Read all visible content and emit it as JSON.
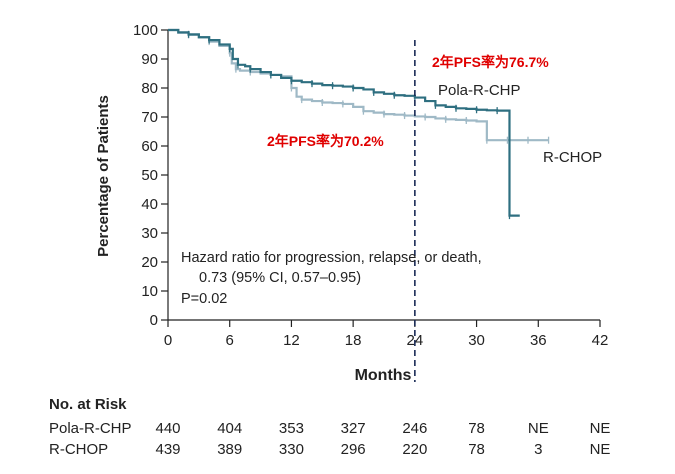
{
  "chart_data": {
    "type": "line",
    "title": "",
    "xlabel": "Months",
    "ylabel": "Percentage of Patients",
    "xlim": [
      0,
      42
    ],
    "ylim": [
      0,
      100
    ],
    "xticks": [
      0,
      6,
      12,
      18,
      24,
      30,
      36,
      42
    ],
    "yticks": [
      0,
      10,
      20,
      30,
      40,
      50,
      60,
      70,
      80,
      90,
      100
    ],
    "series": [
      {
        "name": "Pola-R-CHP",
        "color": "#2e6f80",
        "x": [
          0,
          1,
          2,
          3,
          4,
          5,
          6,
          6.3,
          6.8,
          7.5,
          8,
          9,
          10,
          11,
          12,
          13,
          14,
          15,
          16,
          17,
          18,
          19,
          20,
          21,
          22,
          23,
          24,
          25,
          26,
          27,
          28,
          29,
          30,
          31,
          32,
          33.2,
          33.2,
          34.2
        ],
        "y": [
          100,
          99.2,
          98.5,
          97.5,
          96.5,
          95,
          93.5,
          90,
          88,
          87.5,
          86.5,
          85.5,
          84.5,
          83.5,
          82.5,
          82,
          81.5,
          81,
          80.8,
          80.5,
          80,
          79.5,
          78.5,
          78,
          77.5,
          77.3,
          76.7,
          75.5,
          74,
          73.5,
          73,
          72.8,
          72.5,
          72.3,
          72.2,
          72,
          36,
          36
        ]
      },
      {
        "name": "R-CHOP",
        "color": "#9fb9c6",
        "x": [
          0,
          1,
          2,
          3,
          4,
          5,
          6,
          6.2,
          6.6,
          7,
          8,
          9,
          10,
          11,
          12,
          12.5,
          13,
          14,
          15,
          16,
          17,
          18,
          19,
          20,
          21,
          22,
          23,
          24,
          25,
          26,
          27,
          28,
          29,
          30,
          31,
          32,
          33,
          34,
          35,
          36,
          37
        ],
        "y": [
          100,
          99,
          98.3,
          97.5,
          96,
          94.5,
          92,
          88.5,
          86.5,
          86,
          85.5,
          85,
          84.5,
          84,
          80,
          77,
          76,
          75.5,
          75,
          74.8,
          74.5,
          73.5,
          72,
          71.5,
          71,
          70.8,
          70.5,
          70.2,
          70,
          69.5,
          69.2,
          69,
          68.8,
          68.5,
          62,
          62,
          62,
          62,
          62,
          62,
          62
        ]
      }
    ],
    "series_labels": [
      "Pola-R-CHP",
      "R-CHOP"
    ],
    "reference_line": {
      "x": 24,
      "style": "dashed"
    },
    "annotations": [
      {
        "text": "2年PFS率为76.7%",
        "color": "#e00000"
      },
      {
        "text": "2年PFS率为70.2%",
        "color": "#e00000"
      },
      {
        "text": "Hazard ratio for progression, relapse, or death,"
      },
      {
        "text": "0.73 (95% CI, 0.57–0.95)"
      },
      {
        "text": "P=0.02"
      }
    ]
  },
  "risk_table": {
    "title": "No. at Risk",
    "months": [
      0,
      6,
      12,
      18,
      24,
      30,
      36,
      42
    ],
    "rows": [
      {
        "label": "Pola-R-CHP",
        "values": [
          "440",
          "404",
          "353",
          "327",
          "246",
          "78",
          "NE",
          "NE"
        ]
      },
      {
        "label": "R-CHOP",
        "values": [
          "439",
          "389",
          "330",
          "296",
          "220",
          "78",
          "3",
          "NE"
        ]
      }
    ]
  }
}
